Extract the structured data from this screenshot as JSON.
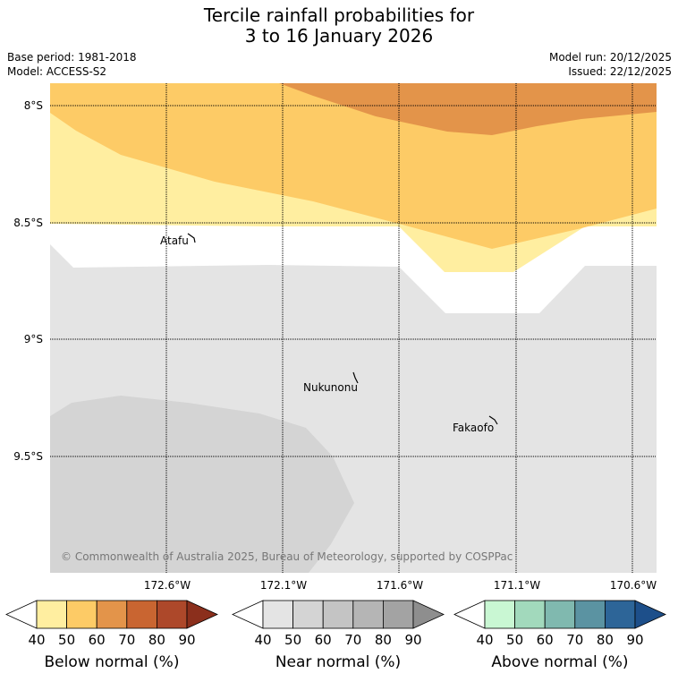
{
  "title": {
    "line1": "Tercile rainfall probabilities for",
    "line2": "3 to 16 January 2026"
  },
  "meta": {
    "base_period": "Base period: 1981-2018",
    "model": "Model: ACCESS-S2",
    "model_run": "Model run: 20/12/2025",
    "issued": "Issued: 22/12/2025"
  },
  "map": {
    "lat_labels": [
      "8°S",
      "8.5°S",
      "9°S",
      "9.5°S"
    ],
    "lon_labels": [
      "172.6°W",
      "172.1°W",
      "171.6°W",
      "171.1°W",
      "170.6°W"
    ],
    "places": [
      "Atafu",
      "Nukunonu",
      "Fakaofo"
    ],
    "copyright": "© Commonwealth of Australia 2025, Bureau of Meteorology, supported by COSPPac"
  },
  "colorbars": [
    {
      "title": "Below normal (%)",
      "ticks": [
        "40",
        "50",
        "60",
        "70",
        "80",
        "90"
      ],
      "colors": [
        "#ffeea0",
        "#fdcb66",
        "#e3944a",
        "#c96531",
        "#ad482a",
        "#8b2f1c"
      ]
    },
    {
      "title": "Near normal (%)",
      "ticks": [
        "40",
        "50",
        "60",
        "70",
        "80",
        "90"
      ],
      "colors": [
        "#e4e4e4",
        "#d4d4d4",
        "#c4c4c4",
        "#b5b5b5",
        "#a3a3a3",
        "#8e8e8e"
      ]
    },
    {
      "title": "Above normal (%)",
      "ticks": [
        "40",
        "50",
        "60",
        "70",
        "80",
        "90"
      ],
      "colors": [
        "#c9f7d3",
        "#a2d9bc",
        "#80b9af",
        "#5b93a2",
        "#2d6598",
        "#1d4f8a"
      ]
    }
  ]
}
